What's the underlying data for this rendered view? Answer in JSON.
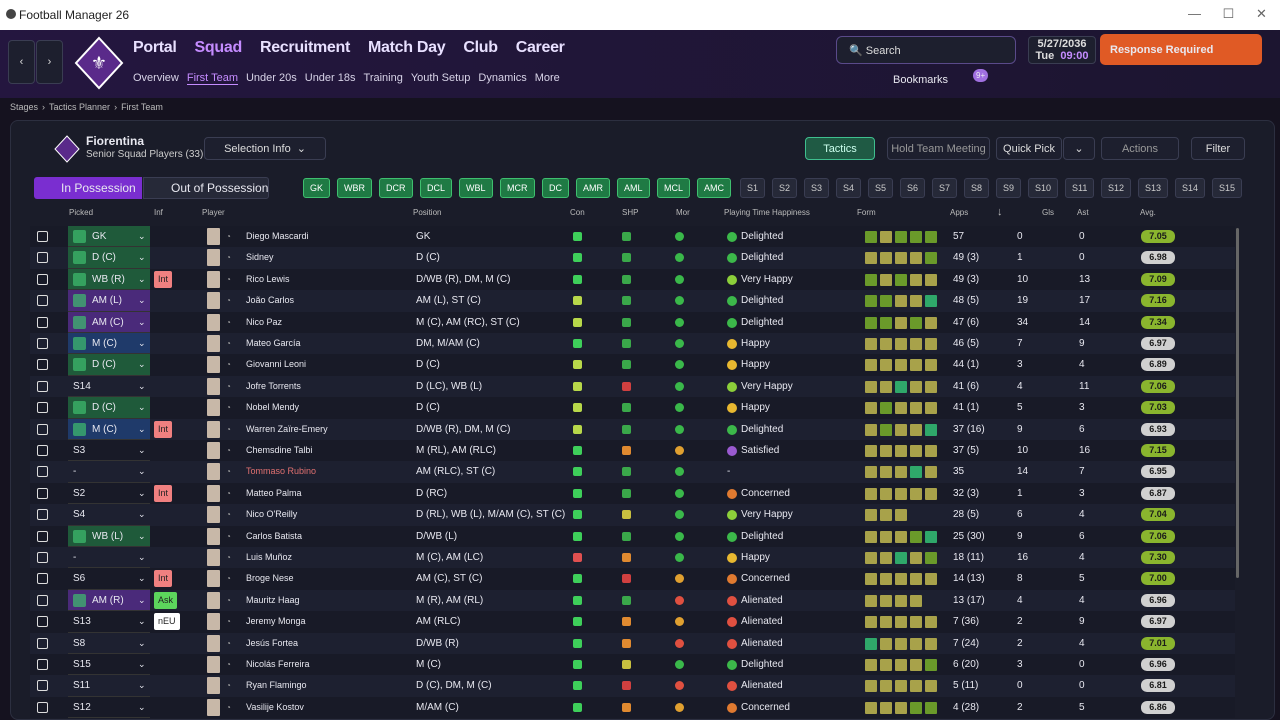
{
  "window": {
    "title": "Football Manager 26"
  },
  "nav": {
    "main": [
      "Portal",
      "Squad",
      "Recruitment",
      "Match Day",
      "Club",
      "Career"
    ],
    "sub": [
      "Overview",
      "First Team",
      "Under 20s",
      "Under 18s",
      "Training",
      "Youth Setup",
      "Dynamics",
      "More"
    ],
    "search": "Search",
    "date": "5/27/2036",
    "day": "Tue",
    "time": "09:00",
    "alert": "Response Required",
    "bookmarks": "Bookmarks",
    "badge": "9+"
  },
  "breadcrumb": [
    "Stages",
    "Tactics Planner",
    "First Team"
  ],
  "team": {
    "name": "Fiorentina",
    "subtitle": "Senior Squad Players (33)"
  },
  "toolbar": {
    "selection_info": "Selection Info",
    "tactics": "Tactics",
    "meeting": "Hold Team Meeting",
    "quick_pick": "Quick Pick",
    "actions": "Actions",
    "filter": "Filter"
  },
  "tabs": [
    "In Possession",
    "Out of Possession"
  ],
  "positions": {
    "filled": [
      "GK",
      "WBR",
      "DCR",
      "DCL",
      "WBL",
      "MCR",
      "DC",
      "AMR",
      "AML",
      "MCL",
      "AMC"
    ],
    "subs": [
      "S1",
      "S2",
      "S3",
      "S4",
      "S5",
      "S6",
      "S7",
      "S8",
      "S9",
      "S10",
      "S11",
      "S12",
      "S13",
      "S14",
      "S15"
    ]
  },
  "table": {
    "columns": [
      "Picked",
      "Inf",
      "Player",
      "Position",
      "Con",
      "SHP",
      "Mor",
      "Playing Time Happiness",
      "Form",
      "Apps",
      "Gls",
      "Ast",
      "Avg."
    ],
    "rows": [
      {
        "pick": "GK",
        "pc": "#1f5a3a",
        "name": "Diego Mascardi",
        "pos": "GK",
        "icons": [
          "#3ecf5a",
          "#3aa84a",
          "#3ab84a"
        ],
        "hap": "Delighted",
        "hc": "#3cb84a",
        "form": [
          "#6a9a2a",
          "#a8a24a",
          "#6a9a2a",
          "#6a9a2a",
          "#6a9a2a"
        ],
        "apps": "57",
        "gls": 0,
        "ast": 0,
        "avg": "7.05",
        "ac": "#8ab52e"
      },
      {
        "pick": "D (C)",
        "pc": "#1f5a3a",
        "name": "Sidney",
        "pos": "D (C)",
        "icons": [
          "#3ecf5a",
          "#3aa84a",
          "#3ab84a"
        ],
        "hap": "Delighted",
        "hc": "#3cb84a",
        "form": [
          "#a8a24a",
          "#a8a24a",
          "#a8a24a",
          "#a8a24a",
          "#6a9a2a"
        ],
        "apps": "49 (3)",
        "gls": 1,
        "ast": 0,
        "avg": "6.98",
        "ac": "#d0d0d0"
      },
      {
        "pick": "WB (R)",
        "pc": "#1f5a3a",
        "inf": "Int",
        "ic": "#f08080",
        "name": "Rico Lewis",
        "pos": "D/WB (R), DM, M (C)",
        "icons": [
          "#3ecf5a",
          "#3aa84a",
          "#3ab84a"
        ],
        "hap": "Very Happy",
        "hc": "#8ccf3a",
        "form": [
          "#6a9a2a",
          "#a8a24a",
          "#6a9a2a",
          "#a8a24a",
          "#a8a24a"
        ],
        "apps": "49 (3)",
        "gls": 10,
        "ast": 13,
        "avg": "7.09",
        "ac": "#8ab52e"
      },
      {
        "pick": "AM (L)",
        "pc": "#4a2a7a",
        "name": "João Carlos",
        "pos": "AM (L), ST (C)",
        "icons": [
          "#b8d84a",
          "#3aa84a",
          "#3ab84a"
        ],
        "hap": "Delighted",
        "hc": "#3cb84a",
        "form": [
          "#6a9a2a",
          "#6a9a2a",
          "#a8a24a",
          "#a8a24a",
          "#2fa86a"
        ],
        "apps": "48 (5)",
        "gls": 19,
        "ast": 17,
        "avg": "7.16",
        "ac": "#8ab52e"
      },
      {
        "pick": "AM (C)",
        "pc": "#4a2a7a",
        "name": "Nico Paz",
        "pos": "M (C), AM (RC), ST (C)",
        "icons": [
          "#b8d84a",
          "#3aa84a",
          "#3ab84a"
        ],
        "hap": "Delighted",
        "hc": "#3cb84a",
        "form": [
          "#6a9a2a",
          "#6a9a2a",
          "#a8a24a",
          "#6a9a2a",
          "#a8a24a"
        ],
        "apps": "47 (6)",
        "gls": 34,
        "ast": 14,
        "avg": "7.34",
        "ac": "#8ab52e"
      },
      {
        "pick": "M (C)",
        "pc": "#1f3a6a",
        "name": "Mateo García",
        "pos": "DM, M/AM (C)",
        "icons": [
          "#3ecf5a",
          "#3aa84a",
          "#3ab84a"
        ],
        "hap": "Happy",
        "hc": "#e8b830",
        "form": [
          "#a8a24a",
          "#a8a24a",
          "#a8a24a",
          "#a8a24a",
          "#a8a24a"
        ],
        "apps": "46 (5)",
        "gls": 7,
        "ast": 9,
        "avg": "6.97",
        "ac": "#d0d0d0"
      },
      {
        "pick": "D (C)",
        "pc": "#1f5a3a",
        "name": "Giovanni Leoni",
        "pos": "D (C)",
        "icons": [
          "#b8d84a",
          "#3aa84a",
          "#3ab84a"
        ],
        "hap": "Happy",
        "hc": "#e8b830",
        "form": [
          "#a8a24a",
          "#a8a24a",
          "#a8a24a",
          "#a8a24a",
          "#a8a24a"
        ],
        "apps": "44 (1)",
        "gls": 3,
        "ast": 4,
        "avg": "6.89",
        "ac": "#d0d0d0"
      },
      {
        "pick": "S14",
        "name": "Jofre Torrents",
        "pos": "D (LC), WB (L)",
        "icons": [
          "#b8d84a",
          "#d04040",
          "#3ab84a"
        ],
        "hap": "Very Happy",
        "hc": "#8ccf3a",
        "form": [
          "#a8a24a",
          "#a8a24a",
          "#2fa86a",
          "#a8a24a",
          "#a8a24a"
        ],
        "apps": "41 (6)",
        "gls": 4,
        "ast": 11,
        "avg": "7.06",
        "ac": "#8ab52e"
      },
      {
        "pick": "D (C)",
        "pc": "#1f5a3a",
        "name": "Nobel Mendy",
        "pos": "D (C)",
        "icons": [
          "#b8d84a",
          "#3aa84a",
          "#3ab84a"
        ],
        "hap": "Happy",
        "hc": "#e8b830",
        "form": [
          "#a8a24a",
          "#6a9a2a",
          "#a8a24a",
          "#a8a24a",
          "#a8a24a"
        ],
        "apps": "41 (1)",
        "gls": 5,
        "ast": 3,
        "avg": "7.03",
        "ac": "#8ab52e"
      },
      {
        "pick": "M (C)",
        "pc": "#1f3a6a",
        "inf": "Int",
        "ic": "#f08080",
        "name": "Warren Zaïre-Emery",
        "pos": "D/WB (R), DM, M (C)",
        "icons": [
          "#b8d84a",
          "#3aa84a",
          "#3ab84a"
        ],
        "hap": "Delighted",
        "hc": "#3cb84a",
        "form": [
          "#a8a24a",
          "#6a9a2a",
          "#a8a24a",
          "#a8a24a",
          "#2fa86a"
        ],
        "apps": "37 (16)",
        "gls": 9,
        "ast": 6,
        "avg": "6.93",
        "ac": "#d0d0d0"
      },
      {
        "pick": "S3",
        "name": "Chemsdine Talbi",
        "pos": "M (RL), AM (RLC)",
        "icons": [
          "#3ecf5a",
          "#e08a30",
          "#e0a030"
        ],
        "hap": "Satisfied",
        "hc": "#9a5ad0",
        "form": [
          "#a8a24a",
          "#a8a24a",
          "#a8a24a",
          "#a8a24a",
          "#a8a24a"
        ],
        "apps": "37 (5)",
        "gls": 10,
        "ast": 16,
        "avg": "7.15",
        "ac": "#8ab52e"
      },
      {
        "pick": "-",
        "name": "Tommaso Rubino",
        "nc": "#e07070",
        "pos": "AM (RLC), ST (C)",
        "icons": [
          "#3ecf5a",
          "#3aa84a",
          "#3ab84a"
        ],
        "hap": "-",
        "form": [
          "#a8a24a",
          "#a8a24a",
          "#a8a24a",
          "#2fa86a",
          "#a8a24a"
        ],
        "apps": "35",
        "gls": 14,
        "ast": 7,
        "avg": "6.95",
        "ac": "#d0d0d0"
      },
      {
        "pick": "S2",
        "inf": "Int",
        "ic": "#f08080",
        "name": "Matteo Palma",
        "pos": "D (RC)",
        "icons": [
          "#3ecf5a",
          "#3aa84a",
          "#3ab84a"
        ],
        "hap": "Concerned",
        "hc": "#e07a30",
        "form": [
          "#a8a24a",
          "#a8a24a",
          "#a8a24a",
          "#a8a24a",
          "#a8a24a"
        ],
        "apps": "32 (3)",
        "gls": 1,
        "ast": 3,
        "avg": "6.87",
        "ac": "#d0d0d0"
      },
      {
        "pick": "S4",
        "name": "Nico O'Reilly",
        "pos": "D (RL), WB (L), M/AM (C), ST (C)",
        "icons": [
          "#3ecf5a",
          "#c8c040",
          "#3ab84a"
        ],
        "hap": "Very Happy",
        "hc": "#8ccf3a",
        "form": [
          "#a8a24a",
          "#a8a24a",
          "#a8a24a"
        ],
        "apps": "28 (5)",
        "gls": 6,
        "ast": 4,
        "avg": "7.04",
        "ac": "#8ab52e"
      },
      {
        "pick": "WB (L)",
        "pc": "#1f5a3a",
        "name": "Carlos Batista",
        "pos": "D/WB (L)",
        "icons": [
          "#3ecf5a",
          "#3aa84a",
          "#3ab84a"
        ],
        "hap": "Delighted",
        "hc": "#3cb84a",
        "form": [
          "#a8a24a",
          "#a8a24a",
          "#a8a24a",
          "#6a9a2a",
          "#2fa86a"
        ],
        "apps": "25 (30)",
        "gls": 9,
        "ast": 6,
        "avg": "7.06",
        "ac": "#8ab52e"
      },
      {
        "pick": "-",
        "name": "Luis Muñoz",
        "pos": "M (C), AM (LC)",
        "icons": [
          "#e05050",
          "#e08a30",
          "#3ab84a"
        ],
        "hap": "Happy",
        "hc": "#e8b830",
        "form": [
          "#a8a24a",
          "#a8a24a",
          "#2fa86a",
          "#a8a24a",
          "#6a9a2a"
        ],
        "apps": "18 (11)",
        "gls": 16,
        "ast": 4,
        "avg": "7.30",
        "ac": "#8ab52e"
      },
      {
        "pick": "S6",
        "inf": "Int",
        "ic": "#f08080",
        "name": "Broge Nese",
        "pos": "AM (C), ST (C)",
        "icons": [
          "#3ecf5a",
          "#d04040",
          "#e0a030"
        ],
        "hap": "Concerned",
        "hc": "#e07a30",
        "form": [
          "#a8a24a",
          "#a8a24a",
          "#a8a24a",
          "#a8a24a",
          "#a8a24a"
        ],
        "apps": "14 (13)",
        "gls": 8,
        "ast": 5,
        "avg": "7.00",
        "ac": "#8ab52e"
      },
      {
        "pick": "AM (R)",
        "pc": "#4a2a7a",
        "inf": "Ask",
        "ic": "#5cd65c",
        "name": "Mauritz Haag",
        "pos": "M (R), AM (RL)",
        "icons": [
          "#3ecf5a",
          "#3aa84a",
          "#e05040"
        ],
        "hap": "Alienated",
        "hc": "#e05040",
        "form": [
          "#a8a24a",
          "#a8a24a",
          "#a8a24a",
          "#a8a24a"
        ],
        "apps": "13 (17)",
        "gls": 4,
        "ast": 4,
        "avg": "6.96",
        "ac": "#d0d0d0"
      },
      {
        "pick": "S13",
        "inf": "nEU",
        "ic": "#ffffff",
        "name": "Jeremy Monga",
        "pos": "AM (RLC)",
        "icons": [
          "#3ecf5a",
          "#e08a30",
          "#e0a030"
        ],
        "hap": "Alienated",
        "hc": "#e05040",
        "form": [
          "#a8a24a",
          "#a8a24a",
          "#a8a24a",
          "#a8a24a",
          "#a8a24a"
        ],
        "apps": "7 (36)",
        "gls": 2,
        "ast": 9,
        "avg": "6.97",
        "ac": "#d0d0d0"
      },
      {
        "pick": "S8",
        "name": "Jesús Fortea",
        "pos": "D/WB (R)",
        "icons": [
          "#3ecf5a",
          "#e08a30",
          "#e05040"
        ],
        "hap": "Alienated",
        "hc": "#e05040",
        "form": [
          "#2fa86a",
          "#a8a24a",
          "#a8a24a",
          "#a8a24a",
          "#a8a24a"
        ],
        "apps": "7 (24)",
        "gls": 2,
        "ast": 4,
        "avg": "7.01",
        "ac": "#8ab52e"
      },
      {
        "pick": "S15",
        "name": "Nicolás Ferreira",
        "pos": "M (C)",
        "icons": [
          "#3ecf5a",
          "#c8c040",
          "#3ab84a"
        ],
        "hap": "Delighted",
        "hc": "#3cb84a",
        "form": [
          "#a8a24a",
          "#a8a24a",
          "#a8a24a",
          "#a8a24a",
          "#6a9a2a"
        ],
        "apps": "6 (20)",
        "gls": 3,
        "ast": 0,
        "avg": "6.96",
        "ac": "#d0d0d0"
      },
      {
        "pick": "S11",
        "name": "Ryan Flamingo",
        "pos": "D (C), DM, M (C)",
        "icons": [
          "#3ecf5a",
          "#d04040",
          "#e05040"
        ],
        "hap": "Alienated",
        "hc": "#e05040",
        "form": [
          "#a8a24a",
          "#a8a24a",
          "#a8a24a",
          "#a8a24a",
          "#a8a24a"
        ],
        "apps": "5 (11)",
        "gls": 0,
        "ast": 0,
        "avg": "6.81",
        "ac": "#d0d0d0"
      },
      {
        "pick": "S12",
        "name": "Vasilije Kostov",
        "pos": "M/AM (C)",
        "icons": [
          "#3ecf5a",
          "#e08a30",
          "#e0a030"
        ],
        "hap": "Concerned",
        "hc": "#e07a30",
        "form": [
          "#a8a24a",
          "#a8a24a",
          "#a8a24a",
          "#6a9a2a",
          "#6a9a2a"
        ],
        "apps": "4 (28)",
        "gls": 2,
        "ast": 5,
        "avg": "6.86",
        "ac": "#d0d0d0"
      }
    ]
  }
}
